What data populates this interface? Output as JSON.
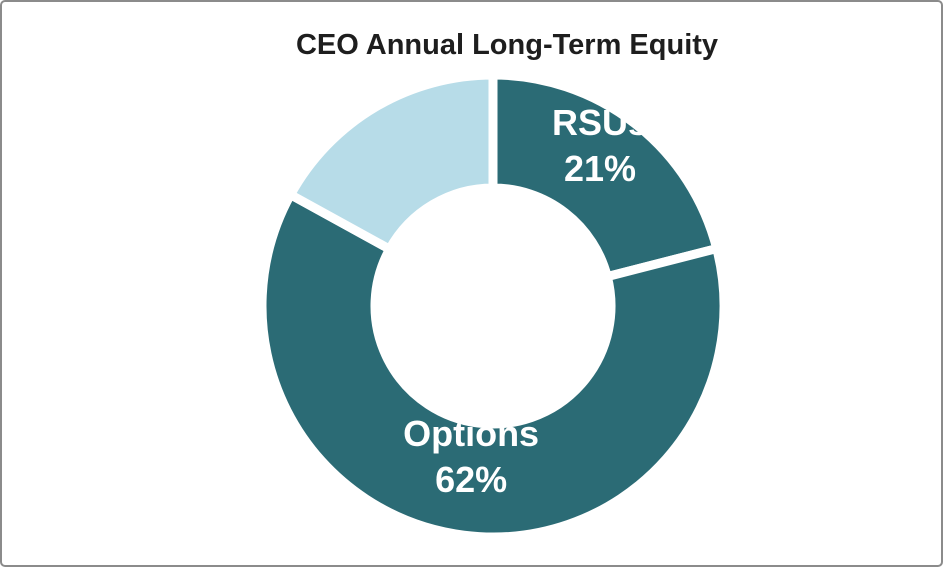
{
  "window": {
    "background": "#FFFFFF",
    "border_color": "#8B8B8B"
  },
  "chart_data": {
    "type": "pie",
    "subtype": "donut",
    "title": "CEO Annual Long-Term Equity",
    "title_color": "#1E1E1E",
    "legend": "none",
    "hole_ratio": 0.51,
    "start_angle_deg": 0,
    "direction": "clockwise",
    "separator_color": "#FFFFFF",
    "slices": [
      {
        "label": "RSUs",
        "value": 21,
        "color": "#2B6B75",
        "data_label_lines": [
          "RSUs",
          "21%"
        ],
        "label_color": "#FFFFFF"
      },
      {
        "label": "Options",
        "value": 62,
        "color": "#2B6B75",
        "data_label_lines": [
          "Options",
          "62%"
        ],
        "label_color": "#FFFFFF"
      },
      {
        "label": "",
        "value": 17,
        "color": "#B7DCE8",
        "data_label_lines": [],
        "label_color": "#FFFFFF"
      }
    ]
  }
}
